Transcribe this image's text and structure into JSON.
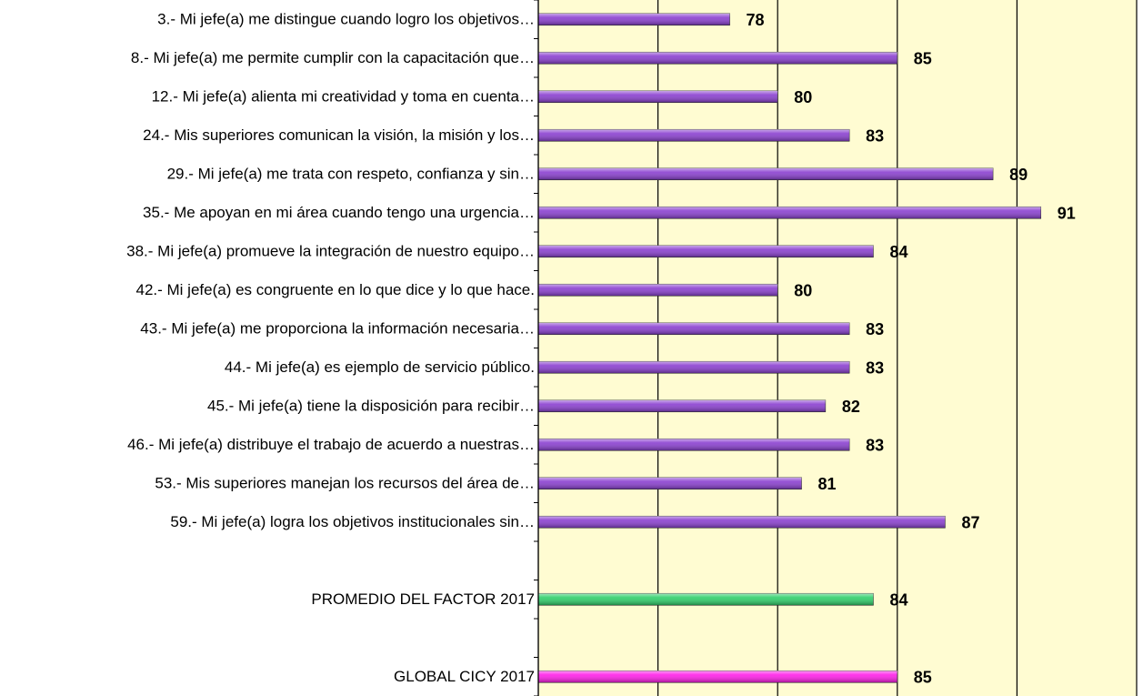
{
  "chart_data": {
    "type": "barh",
    "categories": [
      "3.- Mi jefe(a) me distingue cuando logro los objetivos…",
      "8.- Mi jefe(a) me permite cumplir con la capacitación que…",
      "12.- Mi jefe(a) alienta mi creatividad y toma en cuenta…",
      "24.- Mis superiores comunican la visión, la misión y los…",
      "29.- Mi jefe(a) me trata con respeto, confianza y sin…",
      "35.- Me apoyan en mi área cuando tengo una urgencia…",
      "38.- Mi jefe(a) promueve la integración de nuestro equipo…",
      "42.- Mi jefe(a) es congruente en lo que dice y lo que hace.",
      "43.- Mi jefe(a) me proporciona la información necesaria…",
      "44.- Mi jefe(a) es ejemplo de servicio público.",
      "45.- Mi jefe(a) tiene la disposición para recibir…",
      "46.- Mi jefe(a) distribuye el trabajo de acuerdo a nuestras…",
      "53.- Mis superiores manejan los recursos del área de…",
      "59.- Mi jefe(a) logra los objetivos institucionales sin…",
      null,
      "PROMEDIO DEL FACTOR  2017",
      null,
      "GLOBAL CICY  2017"
    ],
    "values": [
      78,
      85,
      80,
      83,
      89,
      91,
      84,
      80,
      83,
      83,
      82,
      83,
      81,
      87,
      null,
      84,
      null,
      85
    ],
    "colors": [
      "#8a3fd0",
      "#8a3fd0",
      "#8a3fd0",
      "#8a3fd0",
      "#8a3fd0",
      "#8a3fd0",
      "#8a3fd0",
      "#8a3fd0",
      "#8a3fd0",
      "#8a3fd0",
      "#8a3fd0",
      "#8a3fd0",
      "#8a3fd0",
      "#8a3fd0",
      null,
      "#2fcf6a",
      null,
      "#ff1fe8"
    ],
    "xlim": [
      70,
      95
    ],
    "xticks": [
      70,
      75,
      80,
      85,
      90,
      95
    ],
    "grid": true,
    "background": "#fffcd2"
  }
}
